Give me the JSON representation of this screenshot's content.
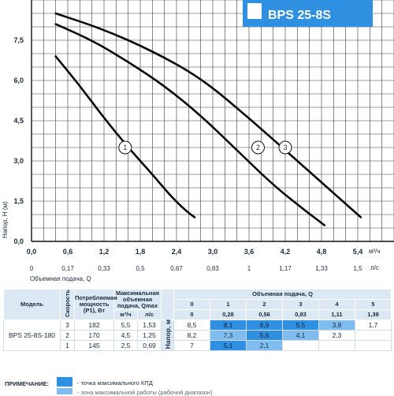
{
  "chart_data": {
    "type": "line",
    "title": "BPS 25-8S",
    "ylabel": "Напор, H (м)",
    "xlabel": "Объемная подача, Q",
    "x_unit_top": "м³/ч",
    "x_unit_bottom": "л/с",
    "xlim": [
      0,
      6
    ],
    "ylim": [
      0,
      9
    ],
    "x_ticks": [
      "0,0",
      "0,6",
      "1,2",
      "1,8",
      "2,4",
      "3,0",
      "3,6",
      "4,2",
      "4,8",
      "5,4"
    ],
    "x_ticks_secondary": [
      "0",
      "0,17",
      "0,33",
      "0,5",
      "0,67",
      "0,83",
      "1",
      "1,17",
      "1,33",
      "1,5"
    ],
    "y_ticks": [
      "0,0",
      "1,5",
      "3,0",
      "4,5",
      "6,0",
      "7,5"
    ],
    "grid": true,
    "series": [
      {
        "name": "1",
        "x": [
          0.4,
          0.8,
          1.2,
          1.6,
          2.0,
          2.3,
          2.55,
          2.7
        ],
        "y": [
          6.9,
          5.8,
          4.6,
          3.5,
          2.5,
          1.7,
          1.15,
          0.9
        ]
      },
      {
        "name": "2",
        "x": [
          0.4,
          1.0,
          1.6,
          2.2,
          2.8,
          3.4,
          4.0,
          4.5,
          4.85
        ],
        "y": [
          8.1,
          7.5,
          6.7,
          5.8,
          4.7,
          3.4,
          2.1,
          1.2,
          0.6
        ]
      },
      {
        "name": "3",
        "x": [
          0.4,
          1.2,
          2.0,
          2.8,
          3.6,
          4.4,
          5.0,
          5.45
        ],
        "y": [
          8.5,
          7.9,
          7.1,
          6.1,
          4.6,
          3.0,
          1.8,
          0.9
        ]
      }
    ],
    "curve_labels": [
      {
        "name": "1",
        "x": 1.55,
        "y": 3.5
      },
      {
        "name": "2",
        "x": 3.75,
        "y": 3.5
      },
      {
        "name": "3",
        "x": 4.2,
        "y": 3.5
      }
    ]
  },
  "table": {
    "headers": {
      "model": "Модель",
      "speed": "Скорость",
      "power": "Потребляемая мощность (P1), Вт",
      "qmax": "Максимальная объемная подача, Qmax",
      "unit_m3h": "м³/ч",
      "unit_ls": "л/с",
      "flow": "Объемная подача, Q",
      "head": "Напор, м"
    },
    "flow_m3h": [
      "0",
      "1",
      "2",
      "3",
      "4",
      "5"
    ],
    "flow_ls": [
      "0",
      "0,28",
      "0,56",
      "0,83",
      "1,11",
      "1,39"
    ],
    "model_name": "BPS 25-8S-180",
    "rows": [
      {
        "speed": "3",
        "power": "182",
        "qmax_m3h": "5,5",
        "qmax_ls": "1,53",
        "heads": [
          "8,5",
          "8,1",
          "6,9",
          "5,5",
          "3,8",
          "1,7"
        ]
      },
      {
        "speed": "2",
        "power": "170",
        "qmax_m3h": "4,5",
        "qmax_ls": "1,25",
        "heads": [
          "8,2",
          "7,3",
          "5,6",
          "4,1",
          "2,3",
          ""
        ]
      },
      {
        "speed": "1",
        "power": "145",
        "qmax_m3h": "2,5",
        "qmax_ls": "0,69",
        "heads": [
          "7",
          "5,1",
          "2,1",
          "",
          "",
          ""
        ]
      }
    ]
  },
  "note": {
    "title": "ПРИМЕЧАНИЕ:",
    "item1": "- точка максимального КПД",
    "item2": "- зона максимальной работы (рабочий диапазон)"
  },
  "colors": {
    "accent": "#2f8fe0",
    "accent_light": "#7fbdf0",
    "header_bg": "#dce9f5",
    "grid": "#3a3a3a"
  }
}
